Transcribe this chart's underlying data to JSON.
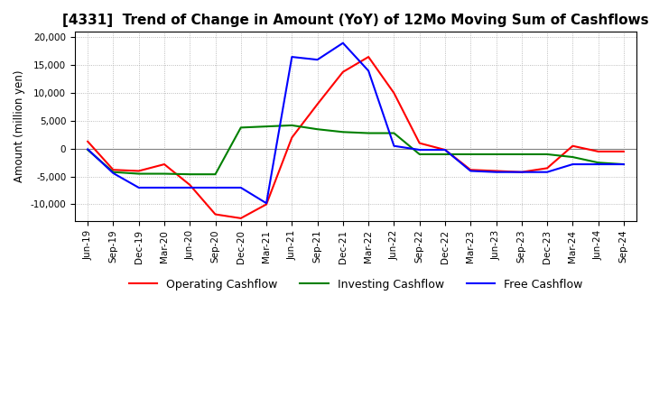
{
  "title": "[4331]  Trend of Change in Amount (YoY) of 12Mo Moving Sum of Cashflows",
  "ylabel": "Amount (million yen)",
  "ylim": [
    -13000,
    21000
  ],
  "yticks": [
    -10000,
    -5000,
    0,
    5000,
    10000,
    15000,
    20000
  ],
  "x_labels": [
    "Jun-19",
    "Sep-19",
    "Dec-19",
    "Mar-20",
    "Jun-20",
    "Sep-20",
    "Dec-20",
    "Mar-21",
    "Jun-21",
    "Sep-21",
    "Dec-21",
    "Mar-22",
    "Jun-22",
    "Sep-22",
    "Dec-22",
    "Mar-23",
    "Jun-23",
    "Sep-23",
    "Dec-23",
    "Mar-24",
    "Jun-24",
    "Sep-24"
  ],
  "operating": [
    1300,
    -3800,
    -4000,
    -2800,
    -6500,
    -11800,
    -12500,
    -10000,
    2000,
    8000,
    13800,
    16500,
    10000,
    1000,
    -200,
    -3800,
    -4000,
    -4200,
    -3500,
    500,
    -500,
    -500
  ],
  "investing": [
    -200,
    -4200,
    -4500,
    -4500,
    -4600,
    -4600,
    3800,
    4000,
    4200,
    3500,
    3000,
    2800,
    2800,
    -1000,
    -1000,
    -1000,
    -1000,
    -1000,
    -1000,
    -1500,
    -2500,
    -2800
  ],
  "free": [
    -100,
    -4400,
    -7000,
    -7000,
    -7000,
    -7000,
    -7000,
    -9800,
    16500,
    16000,
    19000,
    14000,
    500,
    -200,
    -200,
    -4000,
    -4200,
    -4200,
    -4200,
    -2800,
    -2800,
    -2800
  ],
  "operating_color": "#ff0000",
  "investing_color": "#008000",
  "free_color": "#0000ff",
  "background_color": "#ffffff",
  "grid_color": "#aaaaaa",
  "title_fontsize": 11,
  "legend_fontsize": 9,
  "tick_fontsize": 7.5
}
